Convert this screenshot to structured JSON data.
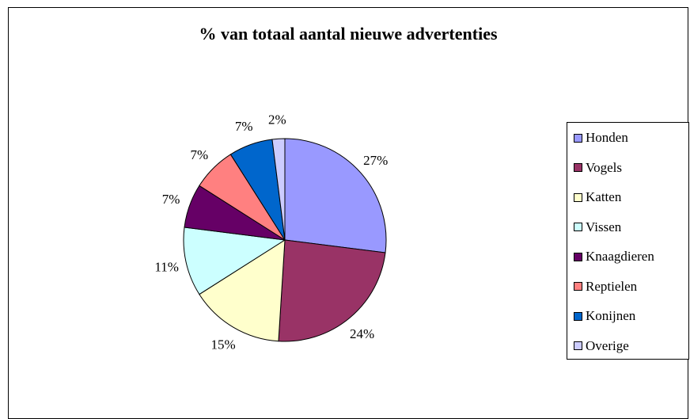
{
  "chart_data": {
    "type": "pie",
    "title": "% van totaal aantal nieuwe advertenties",
    "slices": [
      {
        "label": "Honden",
        "value": 27,
        "data_label": "27%",
        "color": "#9999FF"
      },
      {
        "label": "Vogels",
        "value": 24,
        "data_label": "24%",
        "color": "#993366"
      },
      {
        "label": "Katten",
        "value": 15,
        "data_label": "15%",
        "color": "#FFFFCC"
      },
      {
        "label": "Vissen",
        "value": 11,
        "data_label": "11%",
        "color": "#CCFFFF"
      },
      {
        "label": "Knaagdieren",
        "value": 7,
        "data_label": "7%",
        "color": "#660066"
      },
      {
        "label": "Reptielen",
        "value": 7,
        "data_label": "7%",
        "color": "#FF8080"
      },
      {
        "label": "Konijnen",
        "value": 7,
        "data_label": "7%",
        "color": "#0066CC"
      },
      {
        "label": "Overige",
        "value": 2,
        "data_label": "2%",
        "color": "#CCCCFF"
      }
    ],
    "legend_position": "right"
  }
}
